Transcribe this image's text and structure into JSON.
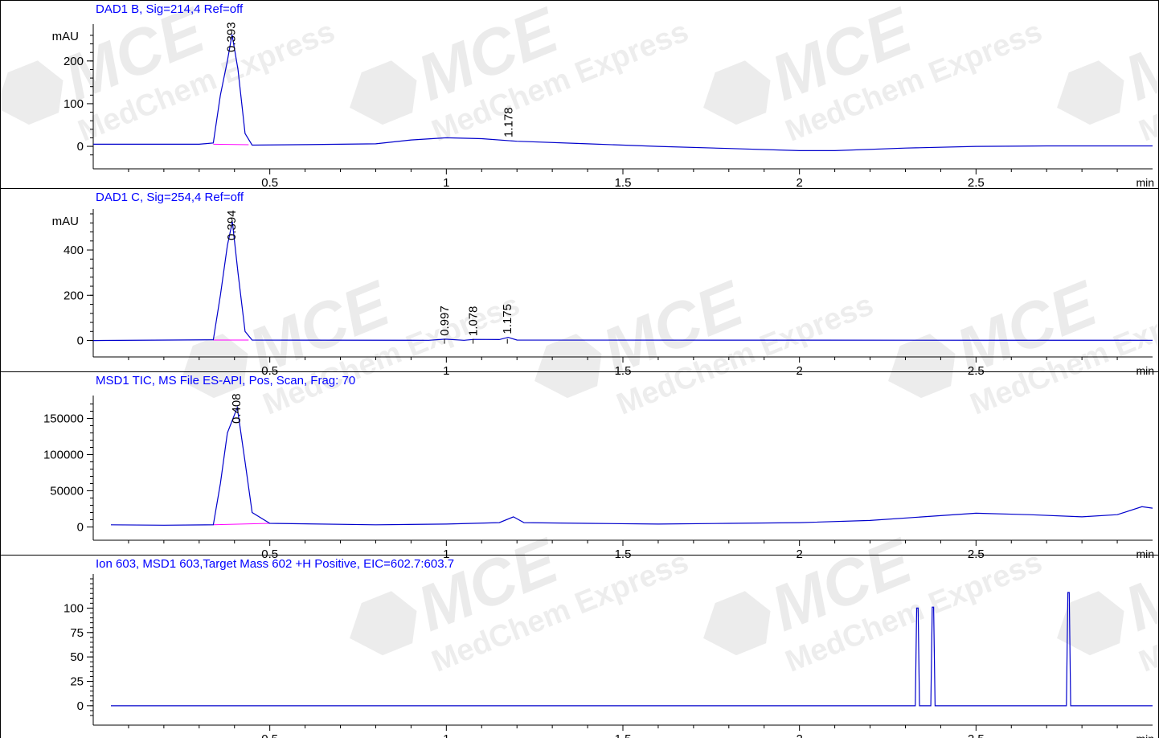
{
  "x_unit": "min",
  "x_ticks": [
    "0.5",
    "1",
    "1.5",
    "2",
    "2.5"
  ],
  "x_range": [
    0.0,
    3.0
  ],
  "watermark": {
    "brand": "MCE",
    "text": "MedChem Express",
    "color": "#dcdcdc"
  },
  "colors": {
    "trace": "#0000cc",
    "title": "#0000ff",
    "baseline": "#ff00ff",
    "axis": "#000000"
  },
  "chart_data": [
    {
      "type": "line",
      "title": "DAD1 B, Sig=214,4 Ref=off",
      "ylabel": "mAU",
      "ylim": [
        -30,
        275
      ],
      "yticks": [
        "0",
        "100",
        "200"
      ],
      "ytick_values": [
        0,
        100,
        200
      ],
      "x": [
        0.0,
        0.3,
        0.34,
        0.36,
        0.38,
        0.393,
        0.41,
        0.43,
        0.45,
        0.6,
        0.8,
        0.9,
        1.0,
        1.1,
        1.2,
        1.4,
        1.6,
        1.8,
        2.0,
        2.1,
        2.3,
        2.5,
        2.7,
        3.0
      ],
      "y": [
        5,
        5,
        8,
        120,
        200,
        262,
        180,
        30,
        3,
        4,
        6,
        15,
        20,
        18,
        12,
        6,
        0,
        -5,
        -10,
        -10,
        -4,
        0,
        1,
        1
      ],
      "peaks": [
        {
          "x": 0.393,
          "label": "0.393"
        },
        {
          "x": 1.178,
          "label": "1.178"
        }
      ]
    },
    {
      "type": "line",
      "title": "DAD1 C, Sig=254,4 Ref=off",
      "ylabel": "mAU",
      "ylim": [
        -30,
        560
      ],
      "yticks": [
        "0",
        "200",
        "400"
      ],
      "ytick_values": [
        0,
        200,
        400
      ],
      "x": [
        0.0,
        0.34,
        0.36,
        0.38,
        0.394,
        0.41,
        0.43,
        0.45,
        0.95,
        0.997,
        1.05,
        1.078,
        1.15,
        1.175,
        1.2,
        3.0
      ],
      "y": [
        0,
        3,
        200,
        420,
        525,
        300,
        40,
        2,
        1,
        6,
        1,
        5,
        4,
        14,
        2,
        1
      ],
      "peaks": [
        {
          "x": 0.997,
          "label": "0.997"
        },
        {
          "x": 1.078,
          "label": "1.078"
        },
        {
          "x": 1.175,
          "label": "1.175"
        }
      ],
      "peak_label_main": {
        "x": 0.394,
        "label": "0.394"
      }
    },
    {
      "type": "line",
      "title": "MSD1 TIC, MS File      ES-API, Pos, Scan, Frag: 70",
      "ylabel": "",
      "ylim": [
        -5000,
        175000
      ],
      "yticks": [
        "0",
        "50000",
        "100000",
        "150000"
      ],
      "ytick_values": [
        0,
        50000,
        100000,
        150000
      ],
      "x": [
        0.05,
        0.2,
        0.34,
        0.36,
        0.38,
        0.408,
        0.43,
        0.45,
        0.5,
        0.8,
        1.0,
        1.15,
        1.19,
        1.22,
        1.4,
        1.6,
        1.8,
        2.0,
        2.2,
        2.35,
        2.5,
        2.65,
        2.8,
        2.9,
        2.97,
        3.0
      ],
      "y": [
        3000,
        2500,
        3000,
        60000,
        130000,
        165000,
        90000,
        20000,
        5000,
        3000,
        4000,
        6000,
        14000,
        6000,
        5000,
        4000,
        5000,
        6000,
        9000,
        14000,
        19000,
        17000,
        14000,
        17000,
        28000,
        26000
      ],
      "peaks": [
        {
          "x": 0.408,
          "label": "0.408"
        }
      ]
    },
    {
      "type": "line",
      "title": "Ion 603, MSD1 603,Target Mass 602 +H Positive, EIC=602.7:603.7",
      "ylabel": "",
      "ylim": [
        -10,
        130
      ],
      "yticks": [
        "0",
        "25",
        "50",
        "75",
        "100"
      ],
      "ytick_values": [
        0,
        25,
        50,
        75,
        100
      ],
      "x": [
        0.05,
        2.328,
        2.332,
        2.336,
        2.34,
        2.372,
        2.376,
        2.38,
        2.384,
        2.756,
        2.76,
        2.764,
        2.768,
        3.0
      ],
      "y": [
        0,
        0,
        100,
        100,
        0,
        0,
        101,
        101,
        0,
        0,
        116,
        116,
        0,
        0
      ],
      "peaks": []
    }
  ]
}
